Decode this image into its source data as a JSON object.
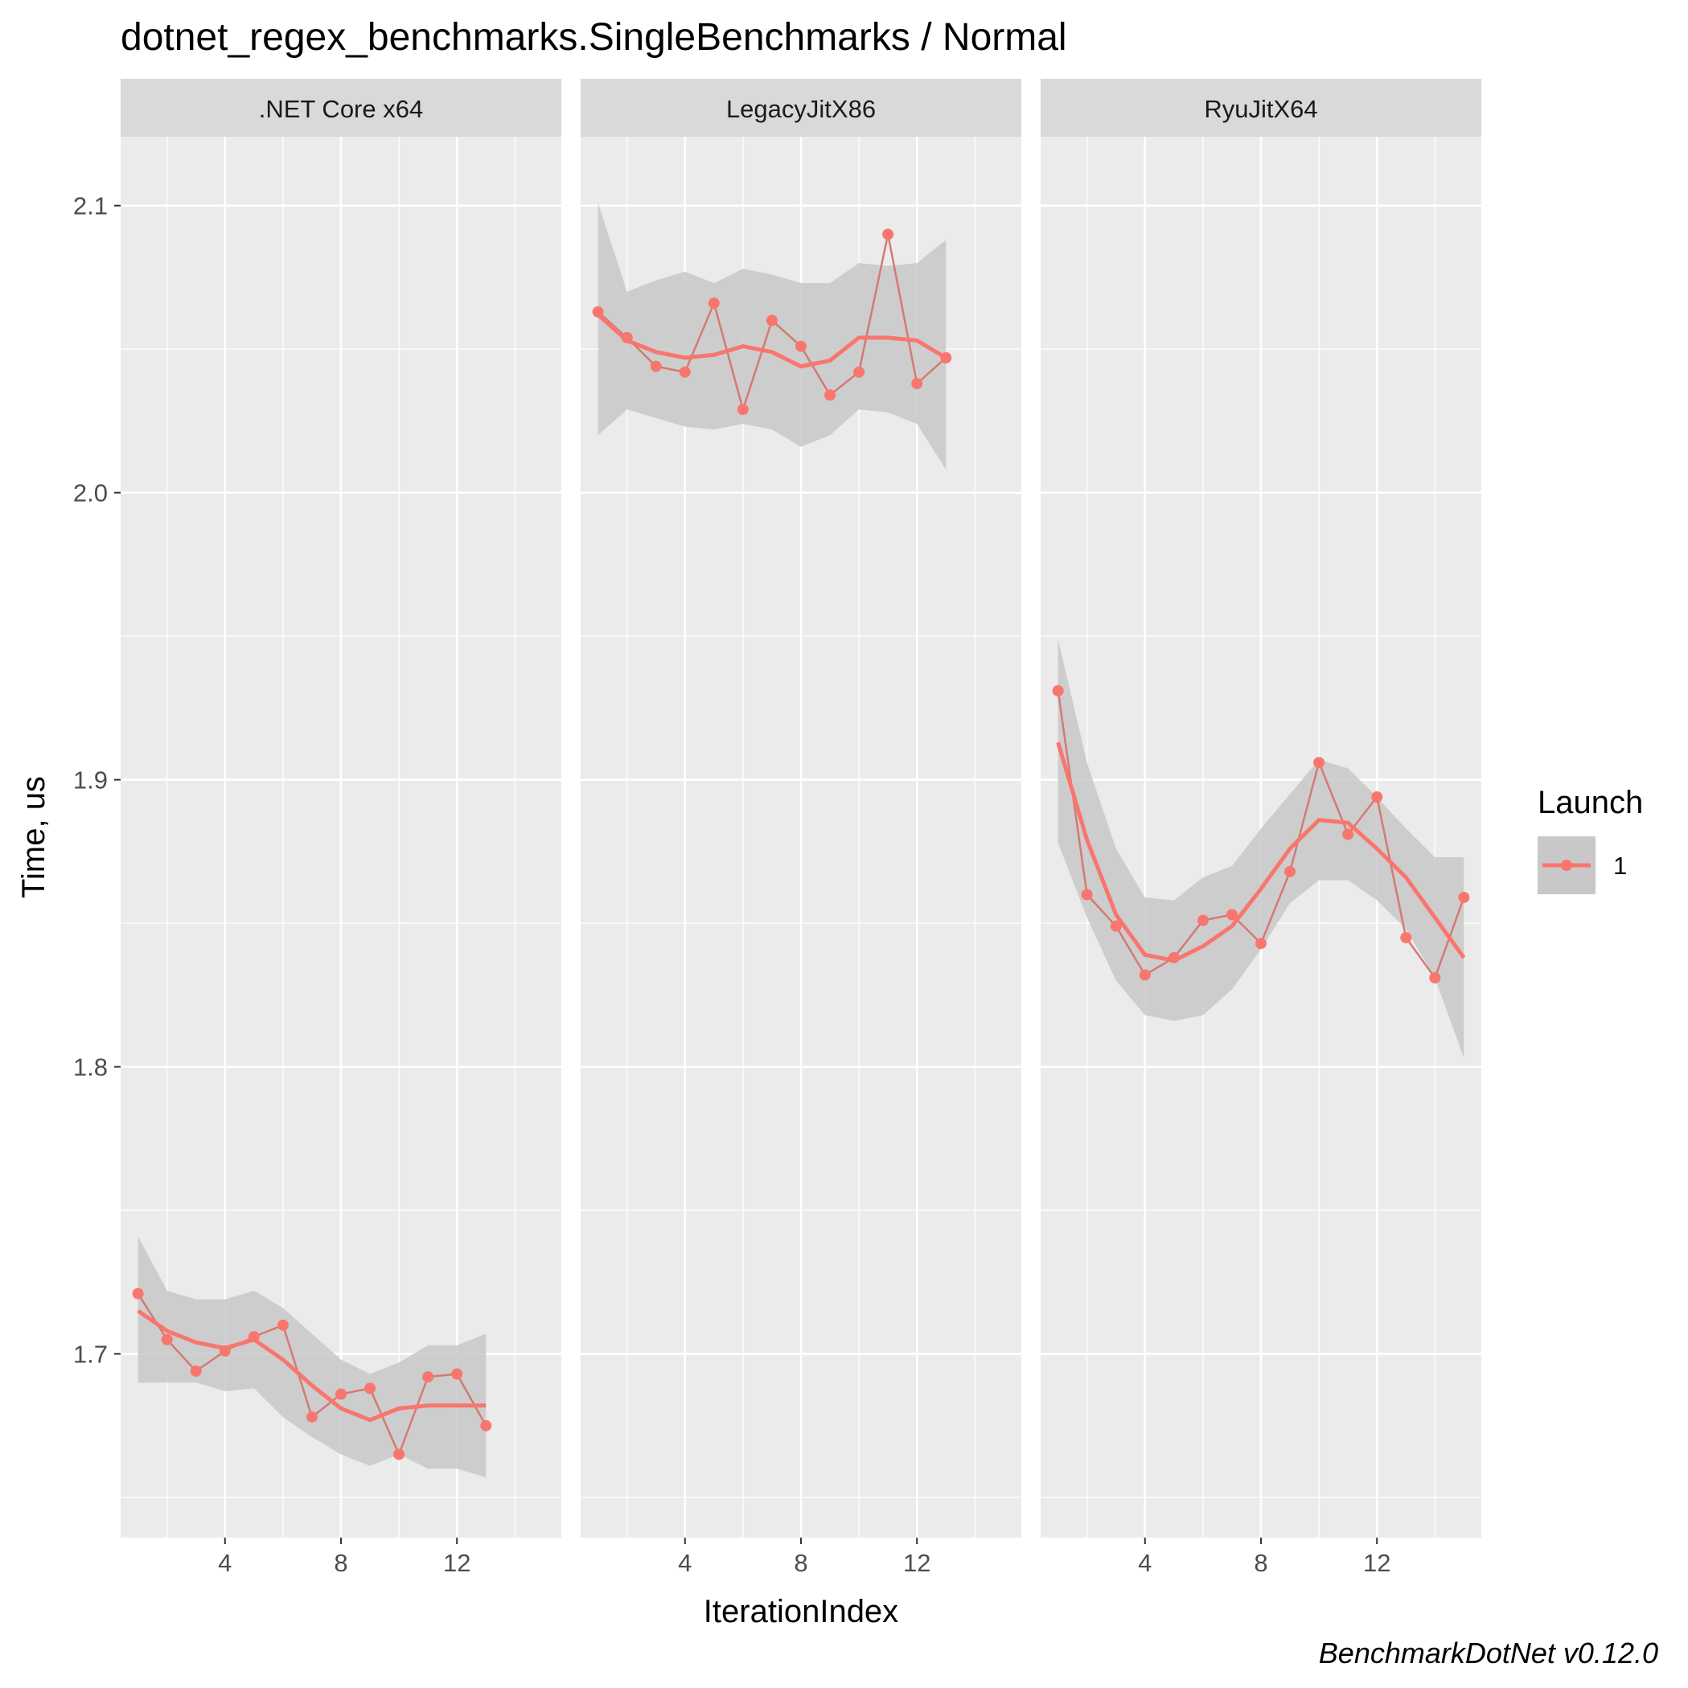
{
  "chart_data": {
    "type": "line",
    "title": "dotnet_regex_benchmarks.SingleBenchmarks / Normal",
    "xlabel": "IterationIndex",
    "ylabel": "Time, us",
    "caption": "BenchmarkDotNet v0.12.0",
    "xlim": [
      0.4,
      15.6
    ],
    "ylim": [
      1.636,
      2.124
    ],
    "x_ticks": [
      4,
      8,
      12
    ],
    "x_tick_labels": [
      "4",
      "8",
      "12"
    ],
    "x_minor_ticks": [
      2,
      6,
      10,
      14
    ],
    "y_ticks": [
      1.7,
      1.8,
      1.9,
      2.0,
      2.1
    ],
    "y_tick_labels": [
      "1.7",
      "1.8",
      "1.9",
      "2.0",
      "2.1"
    ],
    "y_minor_ticks": [
      1.65,
      1.75,
      1.85,
      1.95,
      2.05
    ],
    "legend": {
      "title": "Launch",
      "entries": [
        "1"
      ],
      "position": "right"
    },
    "colors": {
      "series": "#F8766D",
      "raw_line": "#D47A73",
      "ribbon": "#C8C8C8",
      "panel_bg": "#EBEBEB",
      "strip_bg": "#D9D9D9",
      "grid": "#FFFFFF"
    },
    "panels": [
      {
        "label": ".NET Core x64",
        "x": [
          1,
          2,
          3,
          4,
          5,
          6,
          7,
          8,
          9,
          10,
          11,
          12,
          13
        ],
        "y": [
          1.721,
          1.705,
          1.694,
          1.701,
          1.706,
          1.71,
          1.678,
          1.686,
          1.688,
          1.665,
          1.692,
          1.693,
          1.675
        ],
        "smooth_x": [
          1,
          2,
          3,
          4,
          5,
          6,
          7,
          8,
          9,
          10,
          11,
          12,
          13
        ],
        "smooth_y": [
          1.715,
          1.708,
          1.704,
          1.702,
          1.705,
          1.698,
          1.689,
          1.681,
          1.677,
          1.681,
          1.682,
          1.682,
          1.682
        ],
        "ribbon_lower": [
          1.69,
          1.69,
          1.69,
          1.687,
          1.688,
          1.678,
          1.671,
          1.665,
          1.661,
          1.665,
          1.66,
          1.66,
          1.657
        ],
        "ribbon_upper": [
          1.741,
          1.722,
          1.719,
          1.719,
          1.722,
          1.716,
          1.707,
          1.698,
          1.693,
          1.697,
          1.703,
          1.703,
          1.707
        ]
      },
      {
        "label": "LegacyJitX86",
        "x": [
          1,
          2,
          3,
          4,
          5,
          6,
          7,
          8,
          9,
          10,
          11,
          12,
          13
        ],
        "y": [
          2.063,
          2.054,
          2.044,
          2.042,
          2.066,
          2.029,
          2.06,
          2.051,
          2.034,
          2.042,
          2.09,
          2.038,
          2.047
        ],
        "smooth_x": [
          1,
          2,
          3,
          4,
          5,
          6,
          7,
          8,
          9,
          10,
          11,
          12,
          13
        ],
        "smooth_y": [
          2.062,
          2.053,
          2.049,
          2.047,
          2.048,
          2.051,
          2.049,
          2.044,
          2.046,
          2.054,
          2.054,
          2.053,
          2.047
        ],
        "ribbon_lower": [
          2.02,
          2.029,
          2.026,
          2.023,
          2.022,
          2.024,
          2.022,
          2.016,
          2.02,
          2.029,
          2.028,
          2.024,
          2.008
        ],
        "ribbon_upper": [
          2.101,
          2.07,
          2.074,
          2.077,
          2.073,
          2.078,
          2.076,
          2.073,
          2.073,
          2.08,
          2.079,
          2.08,
          2.088
        ]
      },
      {
        "label": "RyuJitX64",
        "x": [
          1,
          2,
          3,
          4,
          5,
          6,
          7,
          8,
          9,
          10,
          11,
          12,
          13,
          14,
          15
        ],
        "y": [
          1.931,
          1.86,
          1.849,
          1.832,
          1.838,
          1.851,
          1.853,
          1.843,
          1.868,
          1.906,
          1.881,
          1.894,
          1.845,
          1.831,
          1.859
        ],
        "smooth_x": [
          1,
          2,
          3,
          4,
          5,
          6,
          7,
          8,
          9,
          10,
          11,
          12,
          13,
          14,
          15
        ],
        "smooth_y": [
          1.913,
          1.879,
          1.853,
          1.839,
          1.837,
          1.842,
          1.849,
          1.862,
          1.876,
          1.886,
          1.885,
          1.876,
          1.866,
          1.852,
          1.838
        ],
        "ribbon_lower": [
          1.878,
          1.852,
          1.83,
          1.818,
          1.816,
          1.818,
          1.827,
          1.841,
          1.857,
          1.865,
          1.865,
          1.858,
          1.848,
          1.831,
          1.803
        ],
        "ribbon_upper": [
          1.949,
          1.906,
          1.876,
          1.859,
          1.858,
          1.866,
          1.87,
          1.883,
          1.895,
          1.907,
          1.904,
          1.894,
          1.883,
          1.873,
          1.873
        ]
      }
    ]
  }
}
